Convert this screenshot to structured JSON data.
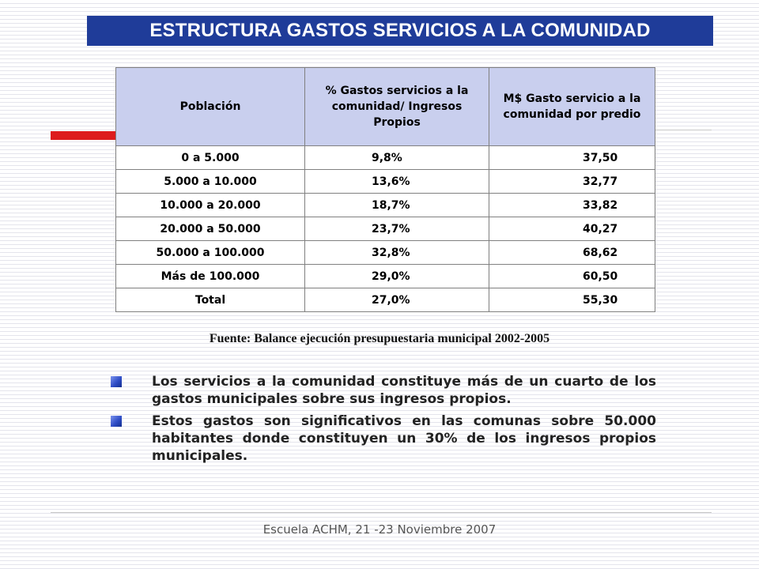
{
  "title": "ESTRUCTURA GASTOS SERVICIOS A LA COMUNIDAD",
  "table": {
    "headers": [
      "Población",
      "% Gastos servicios a la comunidad/ Ingresos Propios",
      "M$ Gasto servicio a la comunidad por predio"
    ],
    "rows": [
      [
        "0 a 5.000",
        "9,8%",
        "37,50"
      ],
      [
        "5.000 a 10.000",
        "13,6%",
        "32,77"
      ],
      [
        "10.000 a 20.000",
        "18,7%",
        "33,82"
      ],
      [
        "20.000 a 50.000",
        "23,7%",
        "40,27"
      ],
      [
        "50.000 a 100.000",
        "32,8%",
        "68,62"
      ],
      [
        "Más de 100.000",
        "29,0%",
        "60,50"
      ],
      [
        "Total",
        "27,0%",
        "55,30"
      ]
    ]
  },
  "source": "Fuente: Balance ejecución presupuestaria municipal 2002-2005",
  "bullets": [
    "Los servicios a la comunidad constituye más de un cuarto de los gastos municipales sobre sus ingresos propios.",
    "Estos gastos son significativos en las comunas sobre 50.000 habitantes donde constituyen un 30% de los ingresos propios municipales."
  ],
  "footer": "Escuela ACHM, 21 -23 Noviembre 2007",
  "colors": {
    "title_bg": "#1f3c99",
    "header_bg": "#c9cfee",
    "accent_red": "#dd1c1c"
  }
}
